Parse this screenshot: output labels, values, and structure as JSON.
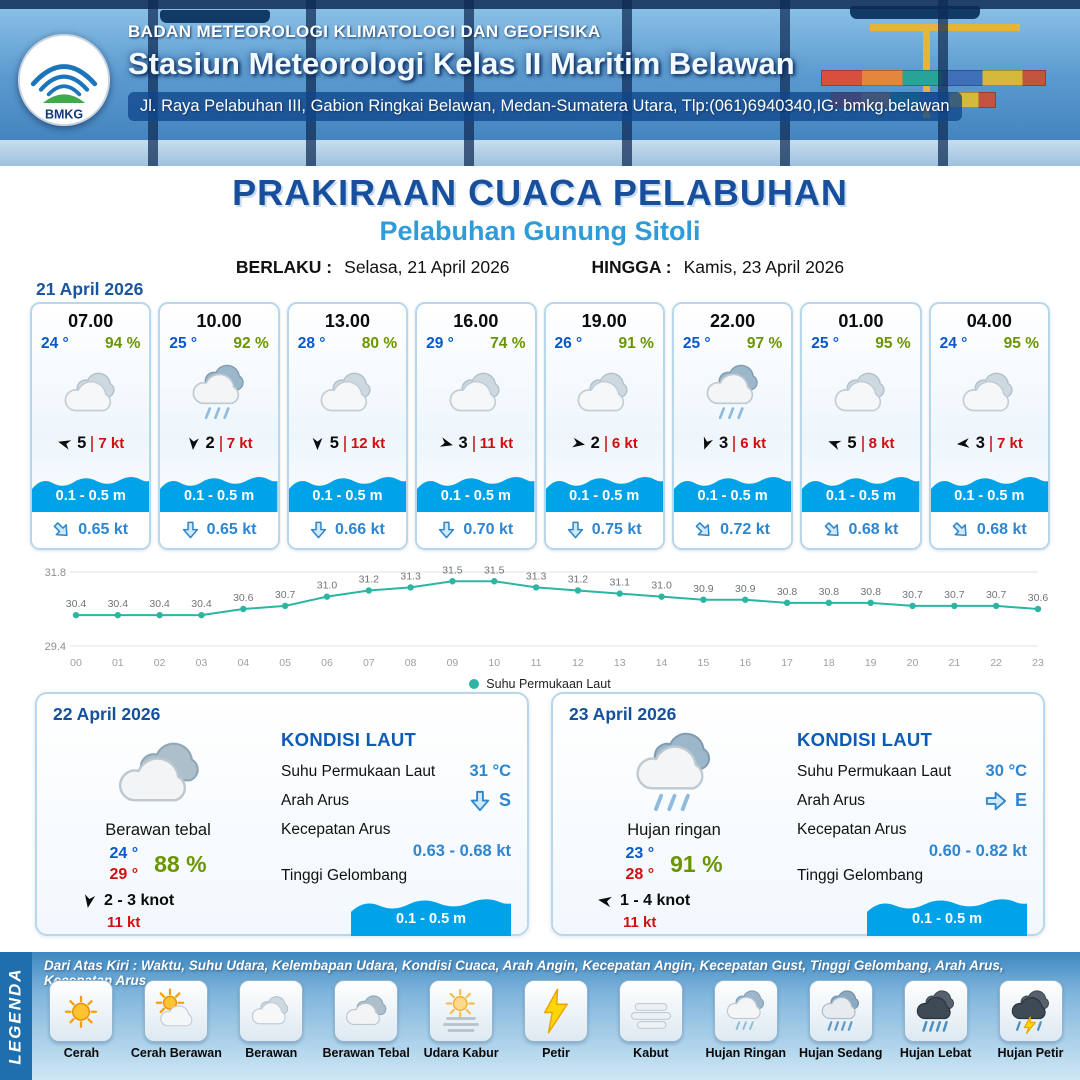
{
  "colors": {
    "primary_blue": "#174f9c",
    "accent_blue": "#2f9bd8",
    "temp_blue": "#0a58c8",
    "humidity_green": "#6b9500",
    "gust_red": "#d01010",
    "wave_blue": "#00a2e8",
    "current_blue": "#2e86d1",
    "chart_line_teal": "#2bb5a2"
  },
  "header": {
    "logo_text": "BMKG",
    "agency": "BADAN METEOROLOGI KLIMATOLOGI DAN GEOFISIKA",
    "station": "Stasiun Meteorologi Kelas II Maritim Belawan",
    "address": "Jl. Raya Pelabuhan III, Gabion Ringkai Belawan, Medan-Sumatera Utara, Tlp:(061)6940340,IG: bmkg.belawan"
  },
  "title": {
    "main": "PRAKIRAAN CUACA PELABUHAN",
    "subtitle": "Pelabuhan Gunung Sitoli",
    "valid_from_label": "BERLAKU :",
    "valid_from": "Selasa, 21 April 2026",
    "valid_to_label": "HINGGA :",
    "valid_to": "Kamis, 23 April 2026"
  },
  "forecast_date": "21 April 2026",
  "hourly_cards": [
    {
      "time": "07.00",
      "temp": "24 °",
      "humidity": "94 %",
      "icon": "berawan",
      "wind_deg": 195,
      "wind_speed": "5",
      "gust": "7 kt",
      "wave": "0.1 - 0.5 m",
      "current_deg": -45,
      "current_speed": "0.65 kt"
    },
    {
      "time": "10.00",
      "temp": "25 °",
      "humidity": "92 %",
      "icon": "hujan-ringan",
      "wind_deg": 95,
      "wind_speed": "2",
      "gust": "7 kt",
      "wave": "0.1 - 0.5 m",
      "current_deg": 0,
      "current_speed": "0.65 kt"
    },
    {
      "time": "13.00",
      "temp": "28 °",
      "humidity": "80 %",
      "icon": "berawan",
      "wind_deg": 90,
      "wind_speed": "5",
      "gust": "12 kt",
      "wave": "0.1 - 0.5 m",
      "current_deg": 0,
      "current_speed": "0.66 kt"
    },
    {
      "time": "16.00",
      "temp": "29 °",
      "humidity": "74 %",
      "icon": "berawan",
      "wind_deg": 15,
      "wind_speed": "3",
      "gust": "11 kt",
      "wave": "0.1 - 0.5 m",
      "current_deg": 0,
      "current_speed": "0.70 kt"
    },
    {
      "time": "19.00",
      "temp": "26 °",
      "humidity": "91 %",
      "icon": "berawan",
      "wind_deg": 10,
      "wind_speed": "2",
      "gust": "6 kt",
      "wave": "0.1 - 0.5 m",
      "current_deg": 0,
      "current_speed": "0.75 kt"
    },
    {
      "time": "22.00",
      "temp": "25 °",
      "humidity": "97 %",
      "icon": "hujan-ringan",
      "wind_deg": 110,
      "wind_speed": "3",
      "gust": "6 kt",
      "wave": "0.1 - 0.5 m",
      "current_deg": -45,
      "current_speed": "0.72 kt"
    },
    {
      "time": "01.00",
      "temp": "25 °",
      "humidity": "95 %",
      "icon": "berawan",
      "wind_deg": 200,
      "wind_speed": "5",
      "gust": "8 kt",
      "wave": "0.1 - 0.5 m",
      "current_deg": -45,
      "current_speed": "0.68 kt"
    },
    {
      "time": "04.00",
      "temp": "24 °",
      "humidity": "95 %",
      "icon": "berawan",
      "wind_deg": 175,
      "wind_speed": "3",
      "gust": "7 kt",
      "wave": "0.1 - 0.5 m",
      "current_deg": -45,
      "current_speed": "0.68 kt"
    }
  ],
  "chart_data": {
    "type": "line",
    "title": "",
    "x": [
      "00",
      "01",
      "02",
      "03",
      "04",
      "05",
      "06",
      "07",
      "08",
      "09",
      "10",
      "11",
      "12",
      "13",
      "14",
      "15",
      "16",
      "17",
      "18",
      "19",
      "20",
      "21",
      "22",
      "23"
    ],
    "series": [
      {
        "name": "Suhu Permukaan Laut",
        "values": [
          30.4,
          30.4,
          30.4,
          30.4,
          30.6,
          30.7,
          31.0,
          31.2,
          31.3,
          31.5,
          31.5,
          31.3,
          31.2,
          31.1,
          31.0,
          30.9,
          30.9,
          30.8,
          30.8,
          30.8,
          30.7,
          30.7,
          30.7,
          30.6
        ]
      }
    ],
    "ylim": [
      29.4,
      31.8
    ],
    "legend_label": "Suhu Permukaan Laut",
    "legend_position": "bottom-center",
    "grid": true,
    "line_color": "#2bb5a2"
  },
  "day_cards": [
    {
      "date": "22 April 2026",
      "icon": "berawan-tebal",
      "condition": "Berawan tebal",
      "temp_min": "24 °",
      "temp_max": "29 °",
      "humidity": "88 %",
      "wind_deg": 100,
      "wind": "2  - 3 knot",
      "gust": "11 kt",
      "sea": {
        "title": "KONDISI LAUT",
        "sst_label": "Suhu Permukaan Laut",
        "sst": "31 °C",
        "dir_label": "Arah Arus",
        "dir": "S",
        "dir_deg": 0,
        "speed_label": "Kecepatan Arus",
        "speed": "0.63  - 0.68 kt",
        "wave_label": "Tinggi Gelombang",
        "wave": "0.1 - 0.5 m"
      }
    },
    {
      "date": "23 April 2026",
      "icon": "hujan-ringan",
      "condition": "Hujan ringan",
      "temp_min": "23 °",
      "temp_max": "28 °",
      "humidity": "91 %",
      "wind_deg": 190,
      "wind": "1  - 4 knot",
      "gust": "11 kt",
      "sea": {
        "title": "KONDISI LAUT",
        "sst_label": "Suhu Permukaan Laut",
        "sst": "30 °C",
        "dir_label": "Arah Arus",
        "dir": "E",
        "dir_deg": -90,
        "speed_label": "Kecepatan Arus",
        "speed": "0.60  - 0.82 kt",
        "wave_label": "Tinggi Gelombang",
        "wave": "0.1 - 0.5 m"
      }
    }
  ],
  "legend": {
    "title": "LEGENDA",
    "note": "Dari Atas Kiri : Waktu, Suhu Udara, Kelembapan Udara, Kondisi Cuaca, Arah Angin, Kecepatan Angin, Kecepatan Gust, Tinggi Gelombang, Arah Arus, Kecepatan Arus",
    "items": [
      {
        "label": "Cerah",
        "icon": "cerah"
      },
      {
        "label": "Cerah Berawan",
        "icon": "cerah-berawan"
      },
      {
        "label": "Berawan",
        "icon": "berawan"
      },
      {
        "label": "Berawan Tebal",
        "icon": "berawan-tebal"
      },
      {
        "label": "Udara Kabur",
        "icon": "udara-kabur"
      },
      {
        "label": "Petir",
        "icon": "petir"
      },
      {
        "label": "Kabut",
        "icon": "kabut"
      },
      {
        "label": "Hujan Ringan",
        "icon": "hujan-ringan"
      },
      {
        "label": "Hujan Sedang",
        "icon": "hujan-sedang"
      },
      {
        "label": "Hujan Lebat",
        "icon": "hujan-lebat"
      },
      {
        "label": "Hujan Petir",
        "icon": "hujan-petir"
      }
    ]
  }
}
